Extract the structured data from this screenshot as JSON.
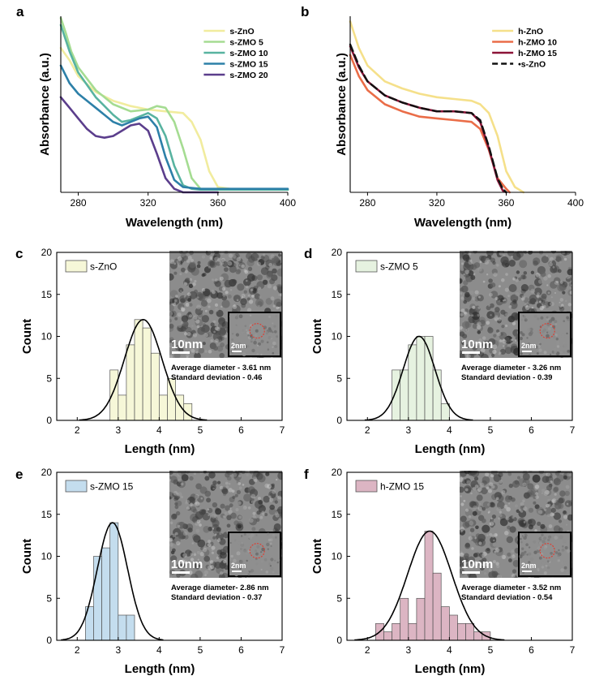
{
  "colors": {
    "sZnO": "#f1ec9e",
    "sZMO5": "#a5dc92",
    "sZMO10": "#58b3a0",
    "sZMO15": "#2d80a8",
    "sZMO20": "#5b3e8c",
    "hZnO": "#f5e08a",
    "hZMO10": "#ea6d48",
    "hZMO15": "#8c1438",
    "dashed": "#111111",
    "histC": "#f6f7d8",
    "histD": "#e6f2e0",
    "histE": "#c4ddee",
    "histF": "#dcb5c3",
    "tem": "#8c8c8c"
  },
  "chart_data": [
    {
      "id": "a",
      "panel_label": "a",
      "type": "line",
      "xlabel": "Wavelength (nm)",
      "ylabel": "Absorbance (a.u.)",
      "xlim": [
        270,
        400
      ],
      "ylim": [
        0,
        1
      ],
      "xticks": [
        280,
        320,
        360,
        400
      ],
      "yticks_shown": false,
      "legend_position": "top-right",
      "series": [
        {
          "name": "s-ZnO",
          "color_key": "sZnO",
          "x": [
            270,
            275,
            280,
            290,
            300,
            310,
            320,
            330,
            340,
            345,
            350,
            355,
            360,
            370,
            380,
            400
          ],
          "y": [
            0.82,
            0.75,
            0.66,
            0.57,
            0.52,
            0.49,
            0.47,
            0.46,
            0.45,
            0.4,
            0.3,
            0.12,
            0.03,
            0.015,
            0.015,
            0.015
          ]
        },
        {
          "name": "s-ZMO 5",
          "color_key": "sZMO5",
          "x": [
            270,
            273,
            276,
            280,
            290,
            300,
            310,
            320,
            325,
            330,
            335,
            340,
            345,
            350,
            360,
            380,
            400
          ],
          "y": [
            0.99,
            0.9,
            0.8,
            0.71,
            0.58,
            0.5,
            0.46,
            0.47,
            0.49,
            0.48,
            0.4,
            0.25,
            0.08,
            0.02,
            0.015,
            0.015,
            0.015
          ]
        },
        {
          "name": "s-ZMO 10",
          "color_key": "sZMO10",
          "x": [
            270,
            275,
            280,
            290,
            300,
            305,
            310,
            315,
            320,
            325,
            330,
            335,
            340,
            345,
            350,
            360,
            380,
            400
          ],
          "y": [
            0.95,
            0.8,
            0.68,
            0.54,
            0.44,
            0.4,
            0.41,
            0.43,
            0.45,
            0.42,
            0.32,
            0.15,
            0.04,
            0.02,
            0.015,
            0.015,
            0.015,
            0.015
          ]
        },
        {
          "name": "s-ZMO 15",
          "color_key": "sZMO15",
          "x": [
            270,
            275,
            280,
            290,
            300,
            305,
            310,
            315,
            320,
            325,
            330,
            335,
            340,
            350,
            360,
            380,
            400
          ],
          "y": [
            0.72,
            0.62,
            0.56,
            0.48,
            0.4,
            0.38,
            0.4,
            0.42,
            0.43,
            0.37,
            0.2,
            0.07,
            0.03,
            0.02,
            0.02,
            0.02,
            0.02
          ]
        },
        {
          "name": "s-ZMO 20",
          "color_key": "sZMO20",
          "x": [
            270,
            275,
            280,
            285,
            290,
            295,
            300,
            305,
            310,
            315,
            320,
            325,
            330,
            335,
            340,
            350,
            360
          ],
          "y": [
            0.54,
            0.48,
            0.42,
            0.36,
            0.32,
            0.31,
            0.32,
            0.35,
            0.38,
            0.39,
            0.35,
            0.22,
            0.08,
            0.02,
            0.0,
            0.0,
            0.0
          ]
        }
      ]
    },
    {
      "id": "b",
      "panel_label": "b",
      "type": "line",
      "xlabel": "Wavelength (nm)",
      "ylabel": "Absorbance (a.u.)",
      "xlim": [
        270,
        400
      ],
      "ylim": [
        0,
        1
      ],
      "xticks": [
        280,
        320,
        360,
        400
      ],
      "yticks_shown": false,
      "legend_position": "top-right",
      "series": [
        {
          "name": "h-ZnO",
          "color_key": "hZnO",
          "x": [
            270,
            275,
            280,
            290,
            300,
            310,
            320,
            330,
            340,
            345,
            350,
            355,
            360,
            365,
            370
          ],
          "y": [
            0.97,
            0.82,
            0.72,
            0.63,
            0.59,
            0.56,
            0.54,
            0.53,
            0.52,
            0.5,
            0.45,
            0.32,
            0.12,
            0.03,
            0.0
          ]
        },
        {
          "name": "h-ZMO 10",
          "color_key": "hZMO10",
          "x": [
            270,
            275,
            280,
            290,
            300,
            310,
            320,
            330,
            340,
            345,
            350,
            355,
            360,
            362
          ],
          "y": [
            0.78,
            0.66,
            0.58,
            0.5,
            0.46,
            0.43,
            0.42,
            0.41,
            0.4,
            0.36,
            0.24,
            0.08,
            0.02,
            0.0
          ]
        },
        {
          "name": "h-ZMO 15",
          "color_key": "hZMO15",
          "x": [
            270,
            275,
            280,
            290,
            300,
            310,
            320,
            330,
            340,
            345,
            350,
            355,
            358,
            360
          ],
          "y": [
            0.83,
            0.71,
            0.63,
            0.55,
            0.51,
            0.48,
            0.46,
            0.46,
            0.45,
            0.4,
            0.25,
            0.07,
            0.01,
            0.0
          ]
        },
        {
          "name": "s-ZnO",
          "legend_prefix": "•",
          "color_key": "dashed",
          "dashed": true,
          "x": [
            270,
            275,
            280,
            290,
            300,
            310,
            320,
            330,
            340,
            345,
            350,
            355,
            358,
            360
          ],
          "y": [
            0.84,
            0.72,
            0.63,
            0.55,
            0.51,
            0.48,
            0.46,
            0.46,
            0.45,
            0.41,
            0.26,
            0.08,
            0.02,
            0.0
          ]
        }
      ]
    },
    {
      "id": "c",
      "panel_label": "c",
      "type": "bar",
      "xlabel": "Length (nm)",
      "ylabel": "Count",
      "xlim": [
        1.5,
        7
      ],
      "ylim": [
        0,
        20
      ],
      "xticks": [
        2,
        3,
        4,
        5,
        6,
        7
      ],
      "yticks": [
        0,
        5,
        10,
        15,
        20
      ],
      "legend": "s-ZnO",
      "legend_position": "top-left",
      "color_key": "histC",
      "bin_width": 0.2,
      "bins_start": [
        2.8,
        3.0,
        3.2,
        3.4,
        3.6,
        3.8,
        4.0,
        4.2,
        4.4,
        4.6
      ],
      "counts": [
        6,
        3,
        9,
        12,
        11,
        8,
        3,
        5,
        3,
        2
      ],
      "fit": {
        "mean": 3.61,
        "sd": 0.46,
        "peak": 12
      },
      "stats": {
        "avg": "Average diameter - 3.61 nm",
        "sd": "Standard deviation - 0.46"
      },
      "tem_scale": "10nm",
      "inset_scale": "2nm"
    },
    {
      "id": "d",
      "panel_label": "d",
      "type": "bar",
      "xlabel": "Length (nm)",
      "ylabel": "Count",
      "xlim": [
        1.5,
        7
      ],
      "ylim": [
        0,
        20
      ],
      "xticks": [
        2,
        3,
        4,
        5,
        6,
        7
      ],
      "yticks": [
        0,
        5,
        10,
        15,
        20
      ],
      "legend": "s-ZMO 5",
      "legend_position": "top-left",
      "color_key": "histD",
      "bin_width": 0.2,
      "bins_start": [
        2.6,
        2.8,
        3.0,
        3.2,
        3.4,
        3.6,
        3.8
      ],
      "counts": [
        6,
        6,
        9,
        10,
        10,
        6,
        2
      ],
      "fit": {
        "mean": 3.26,
        "sd": 0.39,
        "peak": 10
      },
      "stats": {
        "avg": "Average diameter - 3.26 nm",
        "sd": "Standard deviation - 0.39"
      },
      "tem_scale": "10nm",
      "inset_scale": "2nm"
    },
    {
      "id": "e",
      "panel_label": "e",
      "type": "bar",
      "xlabel": "Length (nm)",
      "ylabel": "Count",
      "xlim": [
        1.5,
        7
      ],
      "ylim": [
        0,
        20
      ],
      "xticks": [
        2,
        3,
        4,
        5,
        6,
        7
      ],
      "yticks": [
        0,
        5,
        10,
        15,
        20
      ],
      "legend": "s-ZMO 15",
      "legend_position": "top-left",
      "color_key": "histE",
      "bin_width": 0.2,
      "bins_start": [
        2.2,
        2.4,
        2.6,
        2.8,
        3.0,
        3.2
      ],
      "counts": [
        4,
        10,
        11,
        14,
        3,
        3
      ],
      "fit": {
        "mean": 2.86,
        "sd": 0.37,
        "peak": 14
      },
      "stats": {
        "avg": "Average diameter- 2.86 nm",
        "sd": "Standard deviation - 0.37"
      },
      "tem_scale": "10nm",
      "inset_scale": "2nm"
    },
    {
      "id": "f",
      "panel_label": "f",
      "type": "bar",
      "xlabel": "Length (nm)",
      "ylabel": "Count",
      "xlim": [
        1.5,
        7
      ],
      "ylim": [
        0,
        20
      ],
      "xticks": [
        2,
        3,
        4,
        5,
        6,
        7
      ],
      "yticks": [
        0,
        5,
        10,
        15,
        20
      ],
      "legend": "h-ZMO 15",
      "legend_position": "top-left",
      "color_key": "histF",
      "bin_width": 0.2,
      "bins_start": [
        2.2,
        2.4,
        2.6,
        2.8,
        3.0,
        3.2,
        3.4,
        3.6,
        3.8,
        4.0,
        4.2,
        4.4,
        4.6,
        4.8
      ],
      "counts": [
        2,
        1,
        2,
        5,
        2,
        5,
        13,
        8,
        4,
        3,
        2,
        2,
        1,
        1
      ],
      "fit": {
        "mean": 3.52,
        "sd": 0.54,
        "peak": 13
      },
      "stats": {
        "avg": "Average diameter - 3.52 nm",
        "sd": "Standard deviation -  0.54"
      },
      "tem_scale": "10nm",
      "inset_scale": "2nm"
    }
  ]
}
